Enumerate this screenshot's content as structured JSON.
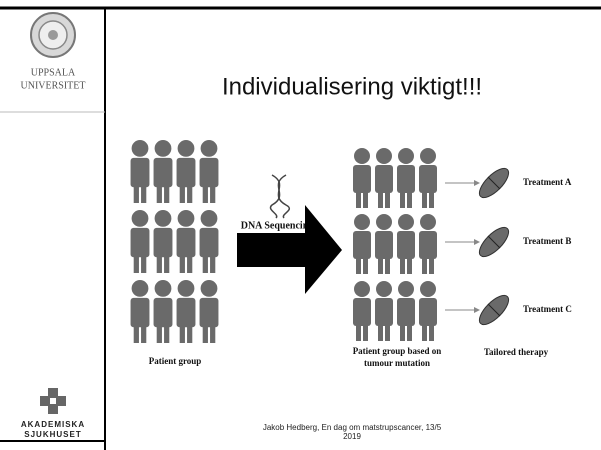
{
  "header": {
    "university": [
      "UPPSALA",
      "UNIVERSITET"
    ],
    "title": "Individualisering viktigt!!!"
  },
  "figure": {
    "dna_label": "DNA Sequencing",
    "left_label": "Patient group",
    "right_label": [
      "Patient group based on",
      "tumour mutation"
    ],
    "therapy_label": "Tailored therapy",
    "treatments": [
      "Treatment A",
      "Treatment B",
      "Treatment C"
    ]
  },
  "footer": {
    "lines": [
      "Jakob Hedberg, En dag om matstrupscancer, 13/5",
      "2019"
    ]
  },
  "hospital": [
    "AKADEMISKA",
    "SJUKHUSET"
  ]
}
